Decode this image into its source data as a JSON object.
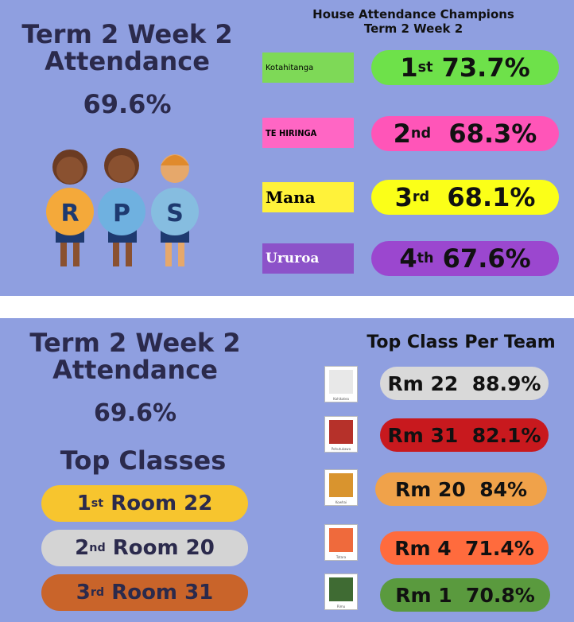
{
  "top_panel": {
    "title_line1": "Term 2 Week 2",
    "title_line2": "Attendance",
    "overall": "69.6%",
    "mascot_letters": [
      "R",
      "P",
      "S"
    ],
    "champions_title_line1": "House Attendance Champions",
    "champions_title_line2": "Term 2 Week 2",
    "houses": [
      {
        "name": "Kotahitanga",
        "rank": "1",
        "suffix": "st",
        "value": "73.7%"
      },
      {
        "name": "TE HIRINGA",
        "rank": "2",
        "suffix": "nd",
        "value": "68.3%"
      },
      {
        "name": "Mana",
        "rank": "3",
        "suffix": "rd",
        "value": "68.1%"
      },
      {
        "name": "Ururoa",
        "rank": "4",
        "suffix": "th",
        "value": "67.6%"
      }
    ]
  },
  "bottom_panel": {
    "title_line1": "Term 2 Week 2",
    "title_line2": "Attendance",
    "overall": "69.6%",
    "top_classes_title": "Top Classes",
    "top_classes": [
      {
        "rank": "1",
        "suffix": "st",
        "room": "Room 22"
      },
      {
        "rank": "2",
        "suffix": "nd",
        "room": "Room 20"
      },
      {
        "rank": "3",
        "suffix": "rd",
        "room": "Room 31"
      }
    ],
    "per_team_title": "Top Class Per Team",
    "teams": [
      {
        "tree": "Kahikatea",
        "room": "Rm 22",
        "value": "88.9%"
      },
      {
        "tree": "Pohutukawa",
        "room": "Rm 31",
        "value": "82.1%"
      },
      {
        "tree": "Kowhai",
        "room": "Rm 20",
        "value": "84%"
      },
      {
        "tree": "Totara",
        "room": "Rm 4",
        "value": "71.4%"
      },
      {
        "tree": "Rimu",
        "room": "Rm 1",
        "value": "70.8%"
      }
    ]
  }
}
